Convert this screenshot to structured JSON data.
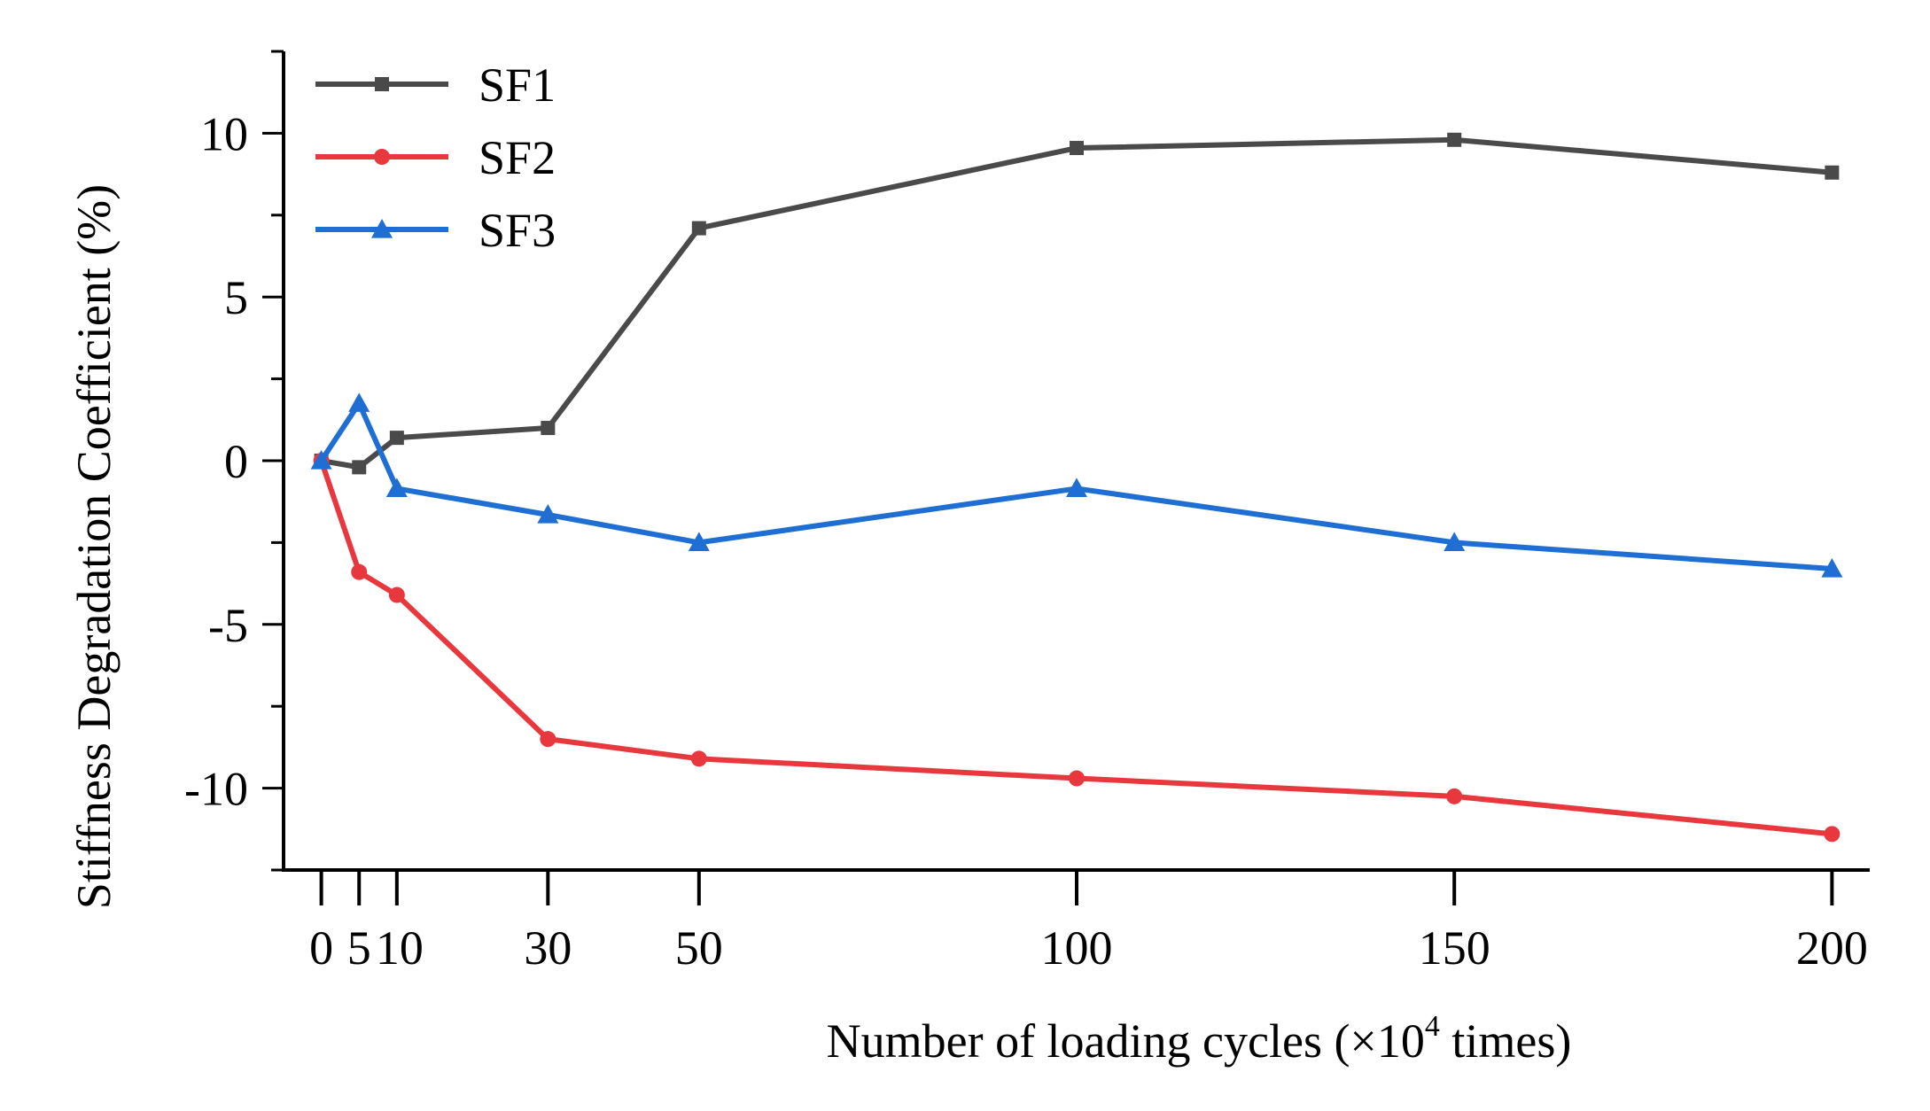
{
  "chart_data": {
    "type": "line",
    "title": "",
    "xlabel": "Number of loading cycles (×10",
    "xlabel_sup": "4",
    "xlabel_tail": " times)",
    "ylabel": "Stiffness Degradation Coefficient (%)",
    "x": [
      0,
      5,
      10,
      30,
      50,
      100,
      150,
      200
    ],
    "x_tick_labels": [
      "0",
      "5",
      "10",
      "30",
      "50",
      "100",
      "150",
      "200"
    ],
    "xlim": [
      -5,
      205
    ],
    "ylim": [
      -12.5,
      12.5
    ],
    "y_ticks": [
      -10,
      -5,
      0,
      5,
      10
    ],
    "y_tick_labels": [
      "-10",
      "-5",
      "0",
      "5",
      "10"
    ],
    "legend_position": "top-left",
    "series": [
      {
        "name": "SF1",
        "color": "#4a4a4a",
        "marker": "square",
        "values": [
          0,
          -0.2,
          0.7,
          1.0,
          7.1,
          9.55,
          9.8,
          8.8
        ]
      },
      {
        "name": "SF2",
        "color": "#e8383d",
        "marker": "circle",
        "values": [
          0,
          -3.4,
          -4.1,
          -8.5,
          -9.1,
          -9.7,
          -10.25,
          -11.4
        ]
      },
      {
        "name": "SF3",
        "color": "#1f6ed4",
        "marker": "triangle",
        "values": [
          0,
          1.75,
          -0.85,
          -1.65,
          -2.5,
          -0.85,
          -2.5,
          -3.3
        ]
      }
    ]
  }
}
